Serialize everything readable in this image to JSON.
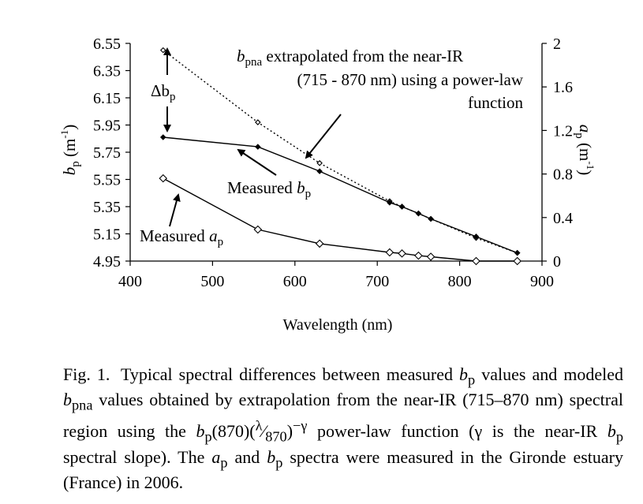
{
  "chart_data": {
    "type": "line",
    "xlabel": "Wavelength (nm)",
    "ylabel_left": "b_p (m^-1)",
    "ylabel_right": "a_p (m^-1)",
    "xlim": [
      400,
      900
    ],
    "ylim_left": [
      4.95,
      6.55
    ],
    "ylim_right": [
      0,
      2
    ],
    "x_ticks": [
      "400",
      "500",
      "600",
      "700",
      "800",
      "900"
    ],
    "y_left_ticks": [
      "4.95",
      "5.15",
      "5.35",
      "5.55",
      "5.75",
      "5.95",
      "6.15",
      "6.35",
      "6.55"
    ],
    "y_right_ticks": [
      "0",
      "0.4",
      "0.8",
      "1.2",
      "1.6",
      "2"
    ],
    "grid": false,
    "legend": "none",
    "series": [
      {
        "axis": "left",
        "style": "dotted",
        "marker": "small-diamond",
        "x": [
          440,
          555,
          630,
          715,
          730,
          750,
          765,
          820,
          870
        ],
        "y": [
          6.5,
          5.97,
          5.67,
          5.39,
          5.35,
          5.3,
          5.26,
          5.12,
          5.01
        ]
      },
      {
        "axis": "left",
        "style": "solid",
        "marker": "small-diamond",
        "x": [
          440,
          555,
          630,
          715,
          730,
          750,
          765,
          820,
          870
        ],
        "y": [
          5.86,
          5.79,
          5.61,
          5.38,
          5.35,
          5.3,
          5.26,
          5.13,
          5.01
        ]
      },
      {
        "axis": "right",
        "style": "solid",
        "marker": "open-diamond",
        "x": [
          440,
          555,
          630,
          715,
          730,
          750,
          765,
          820,
          870
        ],
        "y": [
          0.76,
          0.29,
          0.16,
          0.08,
          0.07,
          0.05,
          0.04,
          0.0,
          0.0
        ]
      }
    ],
    "annotations": {
      "extrap_line1_sym": "b",
      "extrap_line1_sub": "pna",
      "extrap_line1_rest": " extrapolated from the near-IR",
      "extrap_line2": "(715 - 870 nm) using a power-law",
      "extrap_line3": "function",
      "delta_sym": "Δb",
      "delta_sub": "p",
      "measured_b_text": "Measured ",
      "measured_b_sym": "b",
      "measured_b_sub": "p",
      "measured_a_text": "Measured ",
      "measured_a_sym": "a",
      "measured_a_sub": "p"
    }
  },
  "caption": {
    "label": "Fig. 1.",
    "text": "Typical spectral differences between measured b_p values and modeled b_pna values obtained by extrapolation from the near-IR (715–870 nm) spectral region using the b_p(870)(λ/870)^−γ power-law function (γ is the near-IR b_p spectral slope). The a_p and b_p spectra were measured in the Gironde estuary (France) in 2006."
  }
}
